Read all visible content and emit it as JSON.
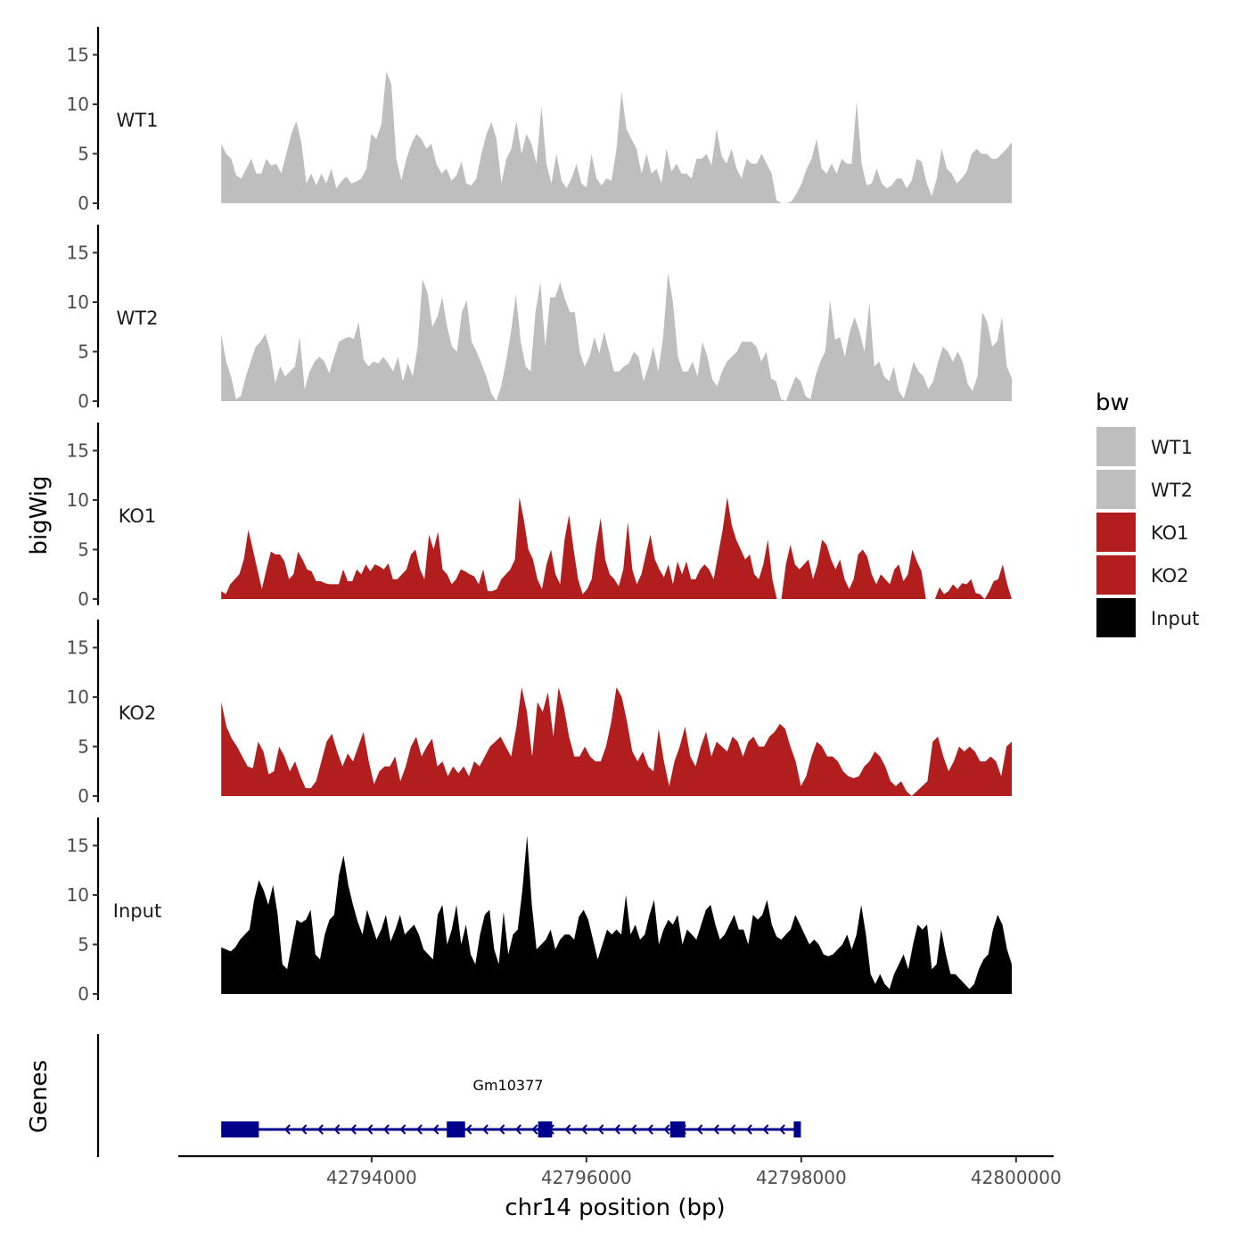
{
  "chart_data": {
    "type": "area",
    "description_title": "",
    "xlabel": "chr14 position (bp)",
    "ylabel": "bigWig",
    "genes_track_label": "Genes",
    "xlim": [
      42792200,
      42800350
    ],
    "x_ticks": [
      42794000,
      42796000,
      42798000,
      42800000
    ],
    "x_tick_labels": [
      "42794000",
      "42796000",
      "42798000",
      "42800000"
    ],
    "ylim": [
      0,
      18
    ],
    "y_ticks": [
      0,
      5,
      10,
      15
    ],
    "y_tick_labels": [
      "0",
      "5",
      "10",
      "15"
    ],
    "x_range": [
      42792600,
      42799960
    ],
    "legend": {
      "title": "bw",
      "position": "right",
      "entries": [
        {
          "label": "WT1",
          "color": "#BEBEBE"
        },
        {
          "label": "WT2",
          "color": "#BEBEBE"
        },
        {
          "label": "KO1",
          "color": "#B21E1E"
        },
        {
          "label": "KO2",
          "color": "#B21E1E"
        },
        {
          "label": "Input",
          "color": "#000000"
        }
      ]
    },
    "series": [
      {
        "name": "WT1",
        "color": "#BEBEBE",
        "values": [
          6,
          5,
          4.5,
          2.8,
          2.5,
          3.5,
          4.5,
          3,
          3,
          4.5,
          3.8,
          4,
          3,
          5,
          7,
          8.3,
          6.2,
          2,
          3,
          1.8,
          3,
          2,
          3.5,
          1.5,
          2.2,
          2.7,
          2,
          2.2,
          2.5,
          3.5,
          7,
          6.5,
          8,
          13.3,
          12,
          4.5,
          2.3,
          4.5,
          6,
          7,
          6.5,
          5.5,
          6,
          4,
          3,
          3.5,
          2.3,
          2.8,
          4.2,
          2,
          1.8,
          2.5,
          5,
          7,
          8.2,
          6.5,
          2,
          4.5,
          5.5,
          8.3,
          5,
          7,
          6,
          4,
          9.8,
          4,
          2,
          5,
          2.3,
          1.5,
          2.5,
          4,
          2,
          1.6,
          5,
          2.5,
          1.8,
          2.5,
          2.3,
          5.5,
          11.3,
          7.5,
          6.5,
          5.5,
          3,
          5,
          3,
          3.5,
          2,
          5.5,
          3.2,
          4,
          3,
          3,
          2.5,
          4.5,
          4.5,
          5,
          3.8,
          7.5,
          4.8,
          4,
          5.5,
          3.5,
          2.5,
          4.5,
          4,
          4,
          5,
          4,
          3,
          0.3,
          0,
          0,
          0.2,
          1,
          2,
          3.5,
          4.5,
          6.5,
          3.5,
          3,
          4,
          3,
          4.5,
          4,
          4,
          10.3,
          4,
          1.8,
          2,
          3.5,
          2,
          1.5,
          1.8,
          2.5,
          2.5,
          1.5,
          2.3,
          4.5,
          4.2,
          2,
          0.7,
          2.5,
          5.5,
          3.5,
          3,
          2,
          2.5,
          3.2,
          5,
          5.5,
          5,
          5,
          4.5,
          4.5,
          5,
          5.5,
          6.2
        ]
      },
      {
        "name": "WT2",
        "color": "#BEBEBE",
        "values": [
          6.8,
          4,
          2.5,
          0.2,
          0.5,
          2.5,
          4,
          5.5,
          6,
          6.8,
          5,
          1.8,
          3.5,
          2.5,
          3,
          3.5,
          6.5,
          1.2,
          3,
          4,
          4.5,
          4,
          2.8,
          4.5,
          6,
          6.3,
          6.5,
          6.3,
          8,
          4.2,
          3.5,
          4,
          3.8,
          4.5,
          3.8,
          3,
          4.5,
          2,
          3.8,
          2.5,
          5.5,
          12.3,
          11,
          7.5,
          8.5,
          10.5,
          7.5,
          5.5,
          5,
          9,
          10.2,
          6,
          5,
          3.8,
          2.5,
          0.8,
          0,
          1.5,
          4,
          7,
          10.8,
          6,
          3.5,
          3,
          9,
          12,
          5.5,
          10.5,
          10.5,
          12,
          10.3,
          9,
          9,
          5,
          3.5,
          4.5,
          6.5,
          4.8,
          7,
          5,
          3,
          3,
          3.5,
          3.8,
          5,
          4.5,
          2,
          3.5,
          5.5,
          3,
          6.5,
          13,
          10,
          4.5,
          3,
          3,
          4,
          2.5,
          6,
          4.5,
          2.2,
          1.5,
          3,
          4,
          4.5,
          5,
          6,
          6,
          6,
          5.5,
          4,
          5,
          2.3,
          2,
          0.2,
          0,
          1.3,
          2.5,
          2,
          0.5,
          0.2,
          2.5,
          4,
          5,
          10.2,
          6.2,
          6.5,
          4.5,
          7,
          8.5,
          7,
          5,
          10,
          3.5,
          4,
          2.5,
          2,
          3.5,
          1,
          0.3,
          2,
          4,
          3,
          2.5,
          1.2,
          2,
          4,
          5.5,
          5,
          4,
          5,
          4,
          1.8,
          1,
          2.5,
          9,
          8,
          5.5,
          6,
          8.5,
          3.5,
          2.3
        ]
      },
      {
        "name": "KO1",
        "color": "#B21E1E",
        "values": [
          0.8,
          0.5,
          1.5,
          2,
          2.5,
          4,
          7,
          5,
          3,
          1,
          3,
          4.8,
          4.5,
          4.5,
          3.8,
          2,
          2.5,
          4.8,
          4,
          3,
          2.8,
          1.8,
          1.8,
          1.6,
          1.5,
          1.5,
          1.5,
          3,
          1.8,
          1.8,
          3,
          2.5,
          3.5,
          2.8,
          3.5,
          3.3,
          3,
          3.6,
          2,
          2,
          2.5,
          3,
          4.5,
          5,
          3,
          2,
          6.5,
          5,
          6.8,
          3,
          2.5,
          1.5,
          2,
          3,
          2.8,
          2.5,
          2.3,
          1.5,
          3,
          0.8,
          0.8,
          1,
          2,
          2.5,
          3,
          4,
          10.3,
          8,
          5,
          4,
          2,
          1,
          3.5,
          5,
          2.5,
          1.5,
          6,
          8.5,
          5,
          2,
          0.5,
          1,
          2,
          5.5,
          8.2,
          4,
          2.5,
          2,
          1.3,
          3,
          7.8,
          3,
          1.5,
          2.5,
          4.5,
          6.5,
          4,
          3,
          2.2,
          3.5,
          1.5,
          3.8,
          2.5,
          3.8,
          2,
          2,
          3,
          3.5,
          3,
          2,
          4.5,
          7,
          10.3,
          7.5,
          6,
          5,
          4,
          4.5,
          2.5,
          2,
          3.5,
          6,
          2,
          0,
          0,
          3.5,
          5.5,
          3.5,
          3,
          3.5,
          4,
          2,
          3.5,
          6,
          5.5,
          4,
          3,
          4,
          2,
          1,
          2,
          4.5,
          5,
          4.3,
          2.5,
          1.5,
          2.5,
          2,
          1.5,
          3,
          3.5,
          1.8,
          2.5,
          5,
          3.8,
          2.8,
          0,
          0,
          0,
          1.2,
          0.5,
          0.8,
          1.5,
          1,
          1.6,
          1.5,
          2,
          0.6,
          0.5,
          0,
          0.8,
          1.8,
          2,
          3.5,
          1.5,
          0
        ]
      },
      {
        "name": "KO2",
        "color": "#B21E1E",
        "values": [
          9.5,
          7,
          5.8,
          5,
          4,
          3,
          2.8,
          5.5,
          4.5,
          2.2,
          2.5,
          5,
          4,
          2.5,
          3.5,
          2,
          0.8,
          0.8,
          1.5,
          3.5,
          5.5,
          6.3,
          4.5,
          3,
          4.3,
          3.5,
          5,
          6.5,
          3.5,
          1.2,
          2.5,
          3,
          3,
          4,
          1.5,
          3,
          5,
          6,
          4,
          5,
          5.8,
          3,
          3.5,
          2,
          3,
          2.3,
          3,
          2,
          3.5,
          3,
          4,
          5,
          5.5,
          6,
          5,
          4,
          7,
          11,
          8.5,
          4,
          9.5,
          8.5,
          10.5,
          6,
          11,
          9,
          6,
          4,
          4,
          5,
          4,
          3.5,
          3.5,
          5,
          7.5,
          11,
          10,
          7.5,
          4.5,
          3.5,
          4.5,
          3,
          2.5,
          6.8,
          3.5,
          1,
          3.5,
          5,
          7,
          4,
          3,
          5,
          6.5,
          4,
          5.5,
          5,
          4.5,
          6,
          5.5,
          4,
          5.5,
          6,
          5,
          5,
          6,
          6.5,
          7.3,
          6.8,
          5,
          3.5,
          1,
          2,
          4,
          5.5,
          5,
          4,
          4,
          3.5,
          2.5,
          2,
          1.8,
          2,
          3,
          3.5,
          4.5,
          4,
          3,
          1.5,
          1,
          1.5,
          0.5,
          0,
          0.5,
          1,
          1.5,
          5.5,
          6,
          4,
          2.5,
          3.5,
          5,
          4.5,
          5,
          4.5,
          3.5,
          3.5,
          4,
          3.5,
          2,
          5,
          5.5
        ]
      },
      {
        "name": "Input",
        "color": "#000000",
        "values": [
          4.7,
          4.5,
          4.3,
          4.7,
          5.5,
          6,
          6.5,
          9.5,
          11.5,
          10.5,
          9,
          11,
          8,
          3,
          2.5,
          5,
          7.5,
          7.2,
          7.5,
          8.5,
          4,
          3.5,
          6,
          7.5,
          8,
          12,
          14,
          11,
          9,
          7.3,
          6,
          8.5,
          7,
          5.5,
          6.5,
          8,
          5.3,
          6.5,
          8,
          6,
          6.5,
          7,
          6,
          4.5,
          4,
          3.5,
          8,
          9,
          5,
          6.5,
          9,
          5,
          7,
          4,
          3,
          6,
          8,
          8.5,
          4.5,
          3,
          8.3,
          4,
          6,
          6.5,
          10.5,
          16,
          9,
          4.5,
          5,
          5.5,
          6.5,
          4.5,
          5.5,
          6,
          6,
          5.5,
          7.8,
          8.5,
          7.5,
          5.5,
          3.5,
          5,
          6.5,
          6,
          6.5,
          6,
          10,
          6,
          7,
          5.5,
          6,
          8,
          9.5,
          5,
          6.5,
          7.5,
          7,
          8,
          5,
          6.5,
          6,
          5.5,
          7,
          8.5,
          9,
          7,
          5.5,
          6,
          7,
          8,
          6.5,
          6.5,
          5,
          8,
          7.5,
          8,
          9.5,
          7,
          5.8,
          5.5,
          6,
          6.5,
          8,
          7,
          6,
          5,
          5.5,
          5,
          4,
          3.8,
          4,
          4.5,
          5,
          6,
          4.5,
          6,
          9,
          6,
          2,
          1,
          2,
          1,
          0.5,
          2,
          3,
          4,
          2.5,
          5,
          7,
          6.5,
          7,
          2.5,
          3,
          6.5,
          4,
          2,
          2,
          1.5,
          1,
          0.5,
          1,
          2.5,
          3.5,
          4,
          6.5,
          8,
          7,
          4.5,
          3
        ]
      }
    ],
    "genes": [
      {
        "name": "Gm10377",
        "strand": "-",
        "start": 42792600,
        "end": 42797980,
        "exons": [
          [
            42792600,
            42792950
          ],
          [
            42794700,
            42794870
          ],
          [
            42795550,
            42795680
          ],
          [
            42796780,
            42796920
          ],
          [
            42797930,
            42797980
          ]
        ]
      }
    ]
  }
}
